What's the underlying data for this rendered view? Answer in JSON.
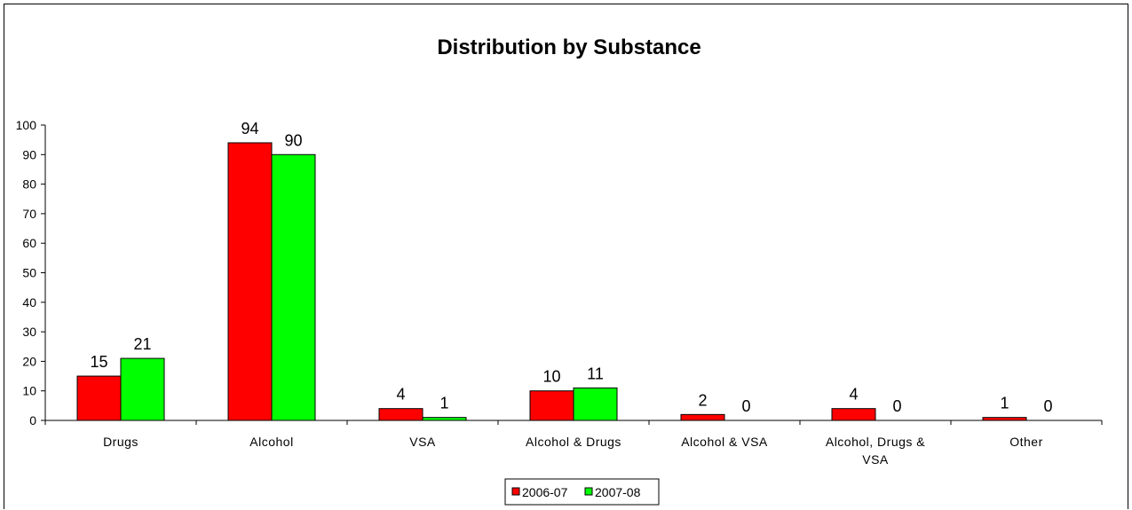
{
  "chart_data": {
    "type": "bar",
    "title": "Distribution by Substance",
    "categories": [
      "Drugs",
      "Alcohol",
      "VSA",
      "Alcohol & Drugs",
      "Alcohol & VSA",
      "Alcohol, Drugs & VSA",
      "Other"
    ],
    "category_lines": [
      [
        "Drugs"
      ],
      [
        "Alcohol"
      ],
      [
        "VSA"
      ],
      [
        "Alcohol & Drugs"
      ],
      [
        "Alcohol & VSA"
      ],
      [
        "Alcohol, Drugs &",
        "VSA"
      ],
      [
        "Other"
      ]
    ],
    "series": [
      {
        "name": "2006-07",
        "color": "#ff0000",
        "values": [
          15,
          94,
          4,
          10,
          2,
          4,
          1
        ]
      },
      {
        "name": "2007-08",
        "color": "#00ff00",
        "values": [
          21,
          90,
          1,
          11,
          0,
          0,
          0
        ]
      }
    ],
    "ylim": [
      0,
      100
    ],
    "yticks": [
      0,
      10,
      20,
      30,
      40,
      50,
      60,
      70,
      80,
      90,
      100
    ],
    "grid": false,
    "legend_position": "bottom",
    "xlabel": "",
    "ylabel": ""
  }
}
